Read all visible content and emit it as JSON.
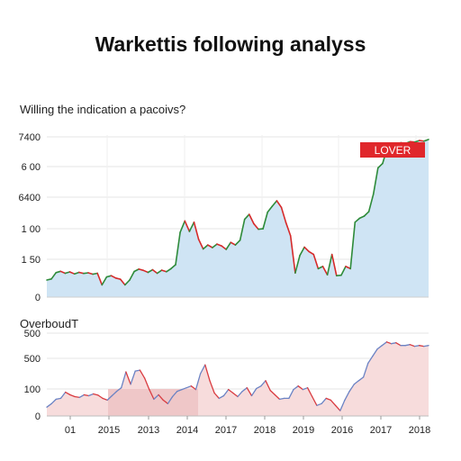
{
  "title": "Warkettis following analyss",
  "subtitle": "Willing the indication a pacoivs?",
  "chart_data": [
    {
      "type": "area",
      "ylim": [
        0,
        7400
      ],
      "y_tick_labels": [
        "7400",
        "6 00",
        "6400",
        "1 00",
        "1 50",
        "0"
      ],
      "badge": "LOVER",
      "colors": {
        "fill": "#cfe4f4",
        "up": "#2e8b3a",
        "down": "#d62a2a",
        "badge": "#e0272b"
      },
      "values": [
        780,
        830,
        1120,
        1180,
        1090,
        1150,
        1060,
        1130,
        1080,
        1110,
        1050,
        1090,
        560,
        920,
        980,
        870,
        820,
        560,
        780,
        1170,
        1280,
        1220,
        1130,
        1250,
        1090,
        1230,
        1160,
        1300,
        1480,
        2960,
        3480,
        3000,
        3420,
        2640,
        2200,
        2380,
        2260,
        2420,
        2340,
        2180,
        2500,
        2380,
        2600,
        3550,
        3780,
        3350,
        3100,
        3120,
        3880,
        4150,
        4400,
        4100,
        3400,
        2800,
        1100,
        1900,
        2280,
        2080,
        1950,
        1300,
        1400,
        1020,
        1950,
        980,
        1000,
        1400,
        1300,
        3420,
        3600,
        3700,
        3900,
        4700,
        5900,
        6100,
        6800,
        6900,
        7000,
        7050,
        7020,
        7100,
        7080,
        7150,
        7120,
        7200
      ]
    },
    {
      "type": "area",
      "label": "OverboudT",
      "y_tick_labels": [
        "500",
        "500",
        "100",
        "0"
      ],
      "x_tick_labels": [
        "01",
        "2015",
        "2013",
        "2014",
        "2017",
        "2018",
        "2019",
        "2016",
        "2017",
        "2018"
      ],
      "colors": {
        "fill": "#f7dcdc",
        "fill_dark": "#efc7c8",
        "line_a": "#d93b40",
        "line_b": "#6b83c4"
      },
      "values": [
        50,
        70,
        95,
        100,
        135,
        120,
        110,
        105,
        120,
        115,
        125,
        118,
        100,
        90,
        115,
        140,
        160,
        250,
        180,
        255,
        260,
        215,
        150,
        95,
        120,
        90,
        70,
        110,
        140,
        150,
        160,
        170,
        150,
        240,
        290,
        200,
        130,
        100,
        115,
        150,
        130,
        110,
        140,
        160,
        115,
        155,
        170,
        200,
        145,
        120,
        95,
        100,
        100,
        150,
        170,
        150,
        160,
        110,
        60,
        70,
        100,
        90,
        60,
        30,
        90,
        140,
        180,
        200,
        220,
        300,
        340,
        380,
        400,
        420,
        410,
        415,
        400,
        400,
        405,
        395,
        400,
        395,
        400
      ]
    }
  ]
}
